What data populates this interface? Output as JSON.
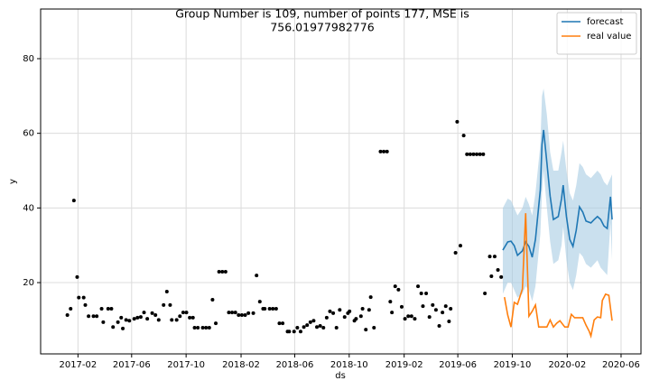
{
  "chart_data": {
    "type": "line",
    "title": [
      "Group Number is 109, number of points 177, MSE is",
      "756.01977982776"
    ],
    "x_label": "ds",
    "y_label": "y",
    "xlim": [
      2016.856,
      2020.537
    ],
    "xticks": [
      {
        "value": 2017.085,
        "label": "2017-02"
      },
      {
        "value": 2017.414,
        "label": "2017-06"
      },
      {
        "value": 2017.748,
        "label": "2017-10"
      },
      {
        "value": 2018.085,
        "label": "2018-02"
      },
      {
        "value": 2018.414,
        "label": "2018-06"
      },
      {
        "value": 2018.748,
        "label": "2018-10"
      },
      {
        "value": 2019.085,
        "label": "2019-02"
      },
      {
        "value": 2019.414,
        "label": "2019-06"
      },
      {
        "value": 2019.748,
        "label": "2019-10"
      },
      {
        "value": 2020.085,
        "label": "2020-02"
      },
      {
        "value": 2020.415,
        "label": "2020-06"
      }
    ],
    "ylim": [
      0.9,
      93.3
    ],
    "yticks": [
      20,
      40,
      60,
      80
    ],
    "grid": true,
    "legend": "upper right",
    "observed": {
      "color": "#000000",
      "x": [
        2017.02,
        2017.04,
        2017.06,
        2017.08,
        2017.09,
        2017.12,
        2017.13,
        2017.15,
        2017.18,
        2017.2,
        2017.23,
        2017.24,
        2017.27,
        2017.29,
        2017.3,
        2017.33,
        2017.35,
        2017.36,
        2017.38,
        2017.4,
        2017.43,
        2017.45,
        2017.47,
        2017.49,
        2017.51,
        2017.54,
        2017.56,
        2017.58,
        2017.61,
        2017.63,
        2017.65,
        2017.66,
        2017.69,
        2017.71,
        2017.73,
        2017.75,
        2017.77,
        2017.79,
        2017.8,
        2017.82,
        2017.85,
        2017.87,
        2017.89,
        2017.91,
        2017.93,
        2017.95,
        2017.97,
        2017.99,
        2018.01,
        2018.03,
        2018.05,
        2018.07,
        2018.09,
        2018.11,
        2018.13,
        2018.16,
        2018.18,
        2018.2,
        2018.22,
        2018.23,
        2018.26,
        2018.28,
        2018.3,
        2018.32,
        2018.34,
        2018.37,
        2018.38,
        2018.41,
        2018.43,
        2018.45,
        2018.47,
        2018.49,
        2018.51,
        2018.53,
        2018.55,
        2018.57,
        2018.59,
        2018.61,
        2018.63,
        2018.65,
        2018.67,
        2018.69,
        2018.72,
        2018.74,
        2018.75,
        2018.78,
        2018.79,
        2018.82,
        2018.83,
        2018.85,
        2018.87,
        2018.88,
        2018.9,
        2018.94,
        2018.96,
        2018.98,
        2019.0,
        2019.01,
        2019.03,
        2019.05,
        2019.07,
        2019.09,
        2019.11,
        2019.13,
        2019.15,
        2019.17,
        2019.19,
        2019.2,
        2019.22,
        2019.24,
        2019.26,
        2019.28,
        2019.3,
        2019.32,
        2019.34,
        2019.36,
        2019.37,
        2019.4,
        2019.41,
        2019.43,
        2019.45,
        2019.47,
        2019.49,
        2019.51,
        2019.53,
        2019.55,
        2019.57,
        2019.58,
        2019.61,
        2019.62,
        2019.64,
        2019.66,
        2019.68
      ],
      "values": [
        11.3,
        13,
        42,
        21.5,
        16,
        16,
        14,
        11,
        11,
        11,
        13,
        9.4,
        13,
        13,
        8.1,
        9.4,
        10.6,
        7.7,
        10,
        9.8,
        10.3,
        10.6,
        10.8,
        12,
        10.3,
        11.8,
        11.3,
        10,
        14,
        17.6,
        14,
        10,
        10,
        11,
        12,
        12,
        10.6,
        10.6,
        7.9,
        7.9,
        7.9,
        7.9,
        7.9,
        15.4,
        9.1,
        22.9,
        22.9,
        22.9,
        12,
        12,
        12,
        11.3,
        11.3,
        11.3,
        11.8,
        11.8,
        21.9,
        14.9,
        13,
        13,
        13,
        13,
        13,
        9.1,
        9.1,
        6.9,
        6.9,
        6.9,
        7.9,
        6.9,
        8.1,
        8.6,
        9.4,
        9.8,
        8.1,
        8.4,
        7.9,
        10.6,
        12.3,
        11.8,
        7.9,
        12.7,
        10.8,
        11.8,
        12.3,
        9.8,
        10.3,
        11,
        13,
        7.4,
        12.7,
        16.1,
        7.9,
        55.1,
        55.1,
        55.1,
        14.9,
        12,
        19,
        18.1,
        13.5,
        10.3,
        11,
        11,
        10.3,
        19,
        17.1,
        13.7,
        17.1,
        10.8,
        14,
        12.7,
        8.4,
        12,
        13.7,
        9.6,
        13,
        28,
        63.1,
        29.9,
        59.4,
        54.4,
        54.4,
        54.4,
        54.4,
        54.4,
        54.4,
        17.1,
        27,
        21.7,
        27,
        23.4,
        21.5
      ]
    },
    "series": [
      {
        "name": "forecast",
        "color": "#1f77b4",
        "band_color": "#a6cbe3",
        "x": [
          2019.69,
          2019.72,
          2019.74,
          2019.76,
          2019.78,
          2019.81,
          2019.83,
          2019.85,
          2019.87,
          2019.89,
          2019.92,
          2019.93,
          2019.94,
          2019.96,
          2019.98,
          2020.0,
          2020.03,
          2020.05,
          2020.06,
          2020.08,
          2020.1,
          2020.12,
          2020.14,
          2020.16,
          2020.18,
          2020.2,
          2020.23,
          2020.25,
          2020.27,
          2020.29,
          2020.31,
          2020.33,
          2020.35,
          2020.36
        ],
        "values": [
          28.7,
          30.9,
          31.1,
          29.9,
          27.3,
          28.5,
          30.9,
          29.7,
          26.8,
          31.6,
          44.9,
          57,
          60.9,
          52.2,
          43.2,
          36.9,
          37.7,
          42.5,
          46.1,
          37.7,
          31.6,
          29.7,
          34,
          40.3,
          38.9,
          36.5,
          36,
          36.9,
          37.7,
          36.9,
          35.2,
          34.5,
          43,
          36.9
        ],
        "upper": [
          40,
          42.5,
          42,
          40,
          38,
          40,
          43,
          41,
          38,
          44,
          57,
          70,
          72,
          65,
          55,
          50,
          50,
          55,
          58,
          50,
          44,
          42,
          46,
          52,
          51,
          49,
          48,
          49,
          50,
          49,
          47,
          46,
          48,
          49
        ],
        "lower": [
          17,
          20,
          20,
          18,
          16,
          17,
          19,
          18,
          15,
          19,
          33,
          44,
          50,
          40,
          31,
          25,
          26,
          30,
          35,
          26,
          20,
          18,
          22,
          28,
          27,
          25,
          24,
          25,
          26,
          24,
          23,
          22,
          36,
          26
        ]
      },
      {
        "name": "real value",
        "color": "#ff7f0e",
        "x": [
          2019.7,
          2019.72,
          2019.74,
          2019.76,
          2019.78,
          2019.81,
          2019.83,
          2019.85,
          2019.87,
          2019.89,
          2019.91,
          2019.93,
          2019.96,
          2019.98,
          2020.0,
          2020.02,
          2020.04,
          2020.07,
          2020.09,
          2020.11,
          2020.13,
          2020.15,
          2020.18,
          2020.2,
          2020.22,
          2020.23,
          2020.25,
          2020.27,
          2020.29,
          2020.3,
          2020.32,
          2020.34,
          2020.36
        ],
        "values": [
          16.1,
          11.3,
          8.1,
          14.7,
          14.2,
          18.3,
          38.6,
          11,
          12.3,
          14,
          8.1,
          8.1,
          8.1,
          10,
          8.1,
          9.1,
          9.8,
          8.1,
          8.1,
          11.5,
          10.6,
          10.6,
          10.6,
          8.6,
          6.9,
          5.7,
          10,
          10.8,
          10.6,
          15.2,
          16.9,
          16.6,
          9.8
        ]
      }
    ]
  }
}
